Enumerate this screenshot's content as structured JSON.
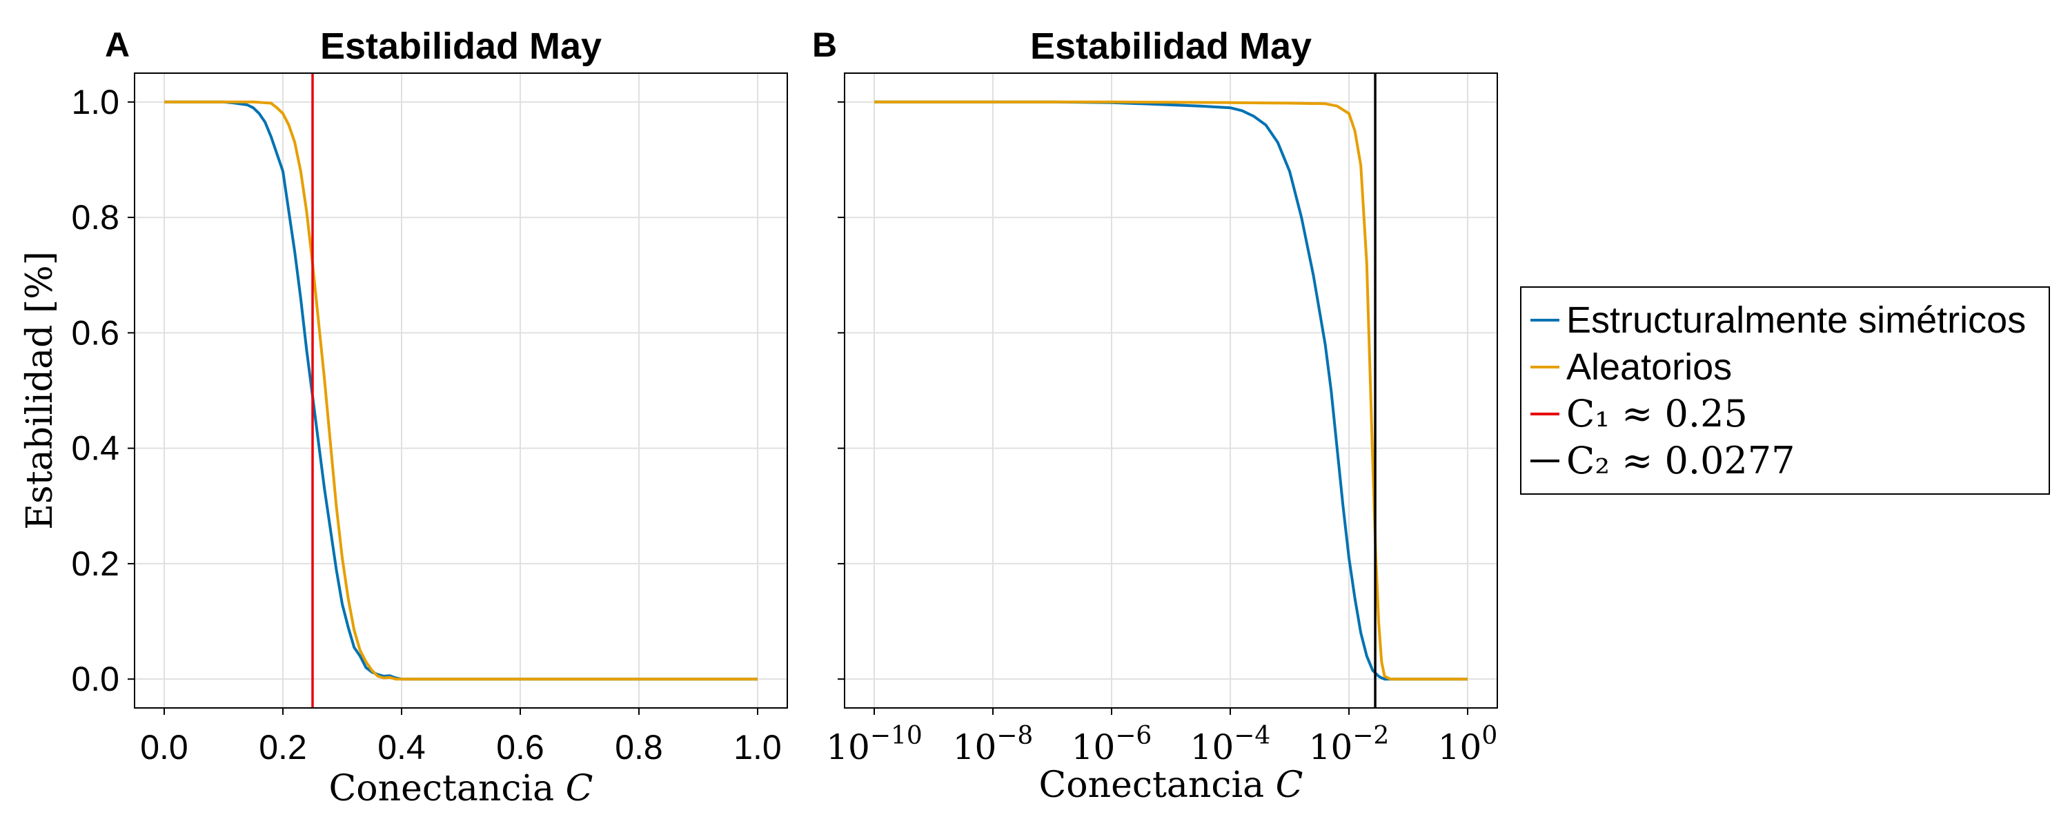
{
  "chart_data": [
    {
      "panel": "A",
      "type": "line",
      "title": "Estabilidad May",
      "xlabel": "Conectancia",
      "xlabel_var": "C",
      "ylabel": "Estabilidad",
      "ylabel_unit": "[%]",
      "xscale": "linear",
      "xlim": [
        -0.05,
        1.05
      ],
      "ylim": [
        -0.05,
        1.05
      ],
      "xticks": [
        0.0,
        0.2,
        0.4,
        0.6,
        0.8,
        1.0
      ],
      "xtick_labels": [
        "0.0",
        "0.2",
        "0.4",
        "0.6",
        "0.8",
        "1.0"
      ],
      "yticks": [
        0.0,
        0.2,
        0.4,
        0.6,
        0.8,
        1.0
      ],
      "ytick_labels": [
        "0.0",
        "0.2",
        "0.4",
        "0.6",
        "0.8",
        "1.0"
      ],
      "grid": true,
      "series": [
        {
          "name": "Estructuralmente simétricos",
          "color": "#0072b2",
          "x": [
            0,
            0.05,
            0.1,
            0.12,
            0.14,
            0.15,
            0.16,
            0.17,
            0.18,
            0.19,
            0.2,
            0.21,
            0.22,
            0.23,
            0.24,
            0.25,
            0.26,
            0.27,
            0.28,
            0.29,
            0.3,
            0.31,
            0.32,
            0.33,
            0.34,
            0.35,
            0.36,
            0.37,
            0.38,
            0.39,
            0.4,
            0.5,
            0.7,
            1.0
          ],
          "y": [
            1.0,
            1.0,
            1.0,
            0.998,
            0.995,
            0.99,
            0.98,
            0.965,
            0.94,
            0.91,
            0.88,
            0.81,
            0.74,
            0.66,
            0.57,
            0.49,
            0.41,
            0.33,
            0.26,
            0.19,
            0.13,
            0.09,
            0.055,
            0.04,
            0.02,
            0.012,
            0.008,
            0.005,
            0.006,
            0.002,
            0.0,
            0.0,
            0.0,
            0.0
          ]
        },
        {
          "name": "Aleatorios",
          "color": "#e69f00",
          "x": [
            0,
            0.05,
            0.1,
            0.15,
            0.18,
            0.19,
            0.2,
            0.21,
            0.22,
            0.23,
            0.24,
            0.25,
            0.26,
            0.27,
            0.28,
            0.29,
            0.3,
            0.31,
            0.32,
            0.33,
            0.34,
            0.35,
            0.36,
            0.37,
            0.38,
            0.39,
            0.4,
            0.5,
            0.7,
            1.0
          ],
          "y": [
            1.0,
            1.0,
            1.0,
            1.0,
            0.998,
            0.99,
            0.98,
            0.96,
            0.93,
            0.88,
            0.81,
            0.72,
            0.62,
            0.52,
            0.41,
            0.3,
            0.21,
            0.14,
            0.085,
            0.05,
            0.03,
            0.015,
            0.005,
            0.002,
            0.003,
            0.0,
            0.0,
            0.0,
            0.0,
            0.0
          ]
        }
      ],
      "vline": {
        "x": 0.25,
        "color": "#e8000b",
        "label": "C1 ≈ 0.25"
      }
    },
    {
      "panel": "B",
      "type": "line",
      "title": "Estabilidad May",
      "xlabel": "Conectancia",
      "xlabel_var": "C",
      "xscale": "log10",
      "xlim_log10": [
        -10.5,
        0.5
      ],
      "ylim": [
        -0.05,
        1.05
      ],
      "xticks_log10": [
        -10,
        -8,
        -6,
        -4,
        -2,
        0
      ],
      "xtick_labels": [
        {
          "base": "10",
          "exp": "−10"
        },
        {
          "base": "10",
          "exp": "−8"
        },
        {
          "base": "10",
          "exp": "−6"
        },
        {
          "base": "10",
          "exp": "−4"
        },
        {
          "base": "10",
          "exp": "−2"
        },
        {
          "base": "10",
          "exp": "0"
        }
      ],
      "yticks": [
        0.0,
        0.2,
        0.4,
        0.6,
        0.8,
        1.0
      ],
      "grid": true,
      "series": [
        {
          "name": "Estructuralmente simétricos",
          "color": "#0072b2",
          "log10_x": [
            -10,
            -8,
            -7,
            -6,
            -5.5,
            -5,
            -4.5,
            -4,
            -3.8,
            -3.6,
            -3.4,
            -3.2,
            -3,
            -2.8,
            -2.6,
            -2.4,
            -2.3,
            -2.2,
            -2.1,
            -2,
            -1.9,
            -1.8,
            -1.7,
            -1.6,
            -1.5,
            -1.45,
            -1.4,
            -1.3,
            0
          ],
          "y": [
            1.0,
            1.0,
            1.0,
            0.999,
            0.997,
            0.995,
            0.993,
            0.99,
            0.985,
            0.975,
            0.96,
            0.93,
            0.88,
            0.8,
            0.7,
            0.58,
            0.5,
            0.4,
            0.3,
            0.21,
            0.14,
            0.08,
            0.04,
            0.015,
            0.005,
            0.002,
            0.0,
            0.0,
            0.0
          ]
        },
        {
          "name": "Aleatorios",
          "color": "#e69f00",
          "log10_x": [
            -10,
            -6,
            -4,
            -3,
            -2.4,
            -2.2,
            -2,
            -1.9,
            -1.8,
            -1.7,
            -1.65,
            -1.6,
            -1.55,
            -1.5,
            -1.45,
            -1.4,
            -1.3,
            0
          ],
          "y": [
            1.0,
            1.0,
            0.999,
            0.998,
            0.997,
            0.993,
            0.98,
            0.95,
            0.89,
            0.72,
            0.55,
            0.38,
            0.22,
            0.1,
            0.03,
            0.005,
            0.0,
            0.0
          ]
        }
      ],
      "vline": {
        "x": 0.0277,
        "color": "#000000",
        "label": "C2 ≈ 0.0277"
      }
    }
  ],
  "legend": {
    "placement": "right",
    "entries": [
      {
        "text": "Estructuralmente simétricos",
        "color": "#0072b2",
        "math": false
      },
      {
        "text": "Aleatorios",
        "color": "#e69f00",
        "math": false
      },
      {
        "text": "C₁ ≈ 0.25",
        "color": "#e8000b",
        "math": true
      },
      {
        "text": "C₂ ≈ 0.0277",
        "color": "#000000",
        "math": true
      }
    ]
  },
  "grid_color": "#e0e0e0"
}
